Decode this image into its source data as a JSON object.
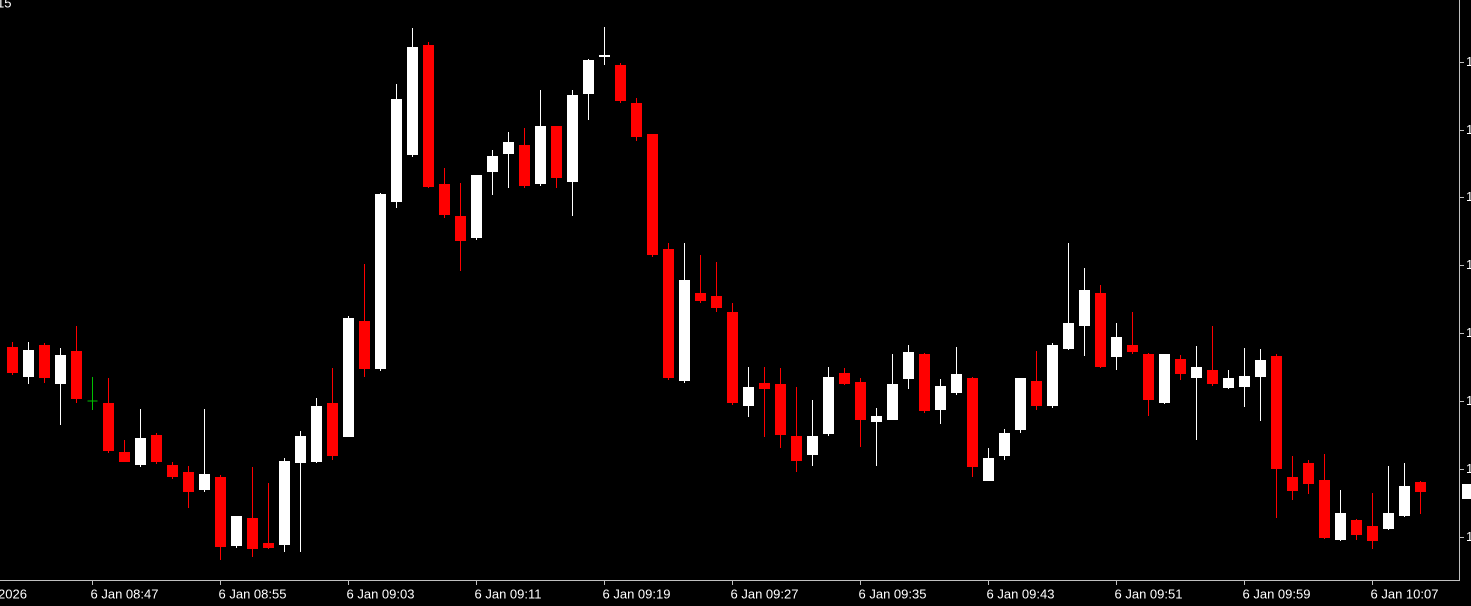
{
  "chart_data": {
    "type": "candlestick",
    "corner_label": "15",
    "left_label": "2026",
    "categories": [
      null,
      null,
      null,
      null,
      null,
      "6 Jan 08:47",
      null,
      null,
      null,
      null,
      null,
      null,
      null,
      "6 Jan 08:55",
      null,
      null,
      null,
      null,
      null,
      null,
      null,
      "6 Jan 09:03",
      null,
      null,
      null,
      null,
      null,
      null,
      null,
      "6 Jan 09:11",
      null,
      null,
      null,
      null,
      null,
      null,
      null,
      "6 Jan 09:19",
      null,
      null,
      null,
      null,
      null,
      null,
      null,
      "6 Jan 09:27",
      null,
      null,
      null,
      null,
      null,
      null,
      null,
      "6 Jan 09:35",
      null,
      null,
      null,
      null,
      null,
      null,
      null,
      "6 Jan 09:43",
      null,
      null,
      null,
      null,
      null,
      null,
      null,
      "6 Jan 09:51",
      null,
      null,
      null,
      null,
      null,
      null,
      null,
      "6 Jan 09:59",
      null,
      null,
      null,
      null,
      null,
      null,
      null,
      "6 Jan 10:07",
      null,
      null,
      null
    ],
    "open": [
      253,
      223,
      255,
      216,
      249,
      199,
      197,
      148,
      135,
      165,
      135,
      128,
      110,
      123,
      54,
      82,
      57,
      55,
      137,
      138,
      197,
      163,
      279,
      231,
      398,
      445,
      555,
      416,
      384,
      362,
      428,
      446,
      455,
      416,
      474,
      418,
      506,
      543,
      535,
      497,
      466,
      351,
      219,
      307,
      304,
      288,
      194,
      217,
      216,
      164,
      145,
      166,
      227,
      218,
      178,
      180,
      221,
      246,
      190,
      207,
      222,
      119,
      144,
      170,
      219,
      194,
      251,
      274,
      307,
      243,
      255,
      246,
      197,
      241,
      222,
      230,
      212,
      213,
      223,
      244,
      123,
      137,
      120,
      60,
      80,
      74,
      71,
      84,
      118
    ],
    "high": [
      258,
      258,
      257,
      252,
      274,
      223,
      222,
      160,
      191,
      167,
      138,
      134,
      191,
      125,
      84,
      133,
      117,
      142,
      169,
      202,
      232,
      284,
      336,
      407,
      516,
      572,
      558,
      432,
      417,
      425,
      450,
      468,
      472,
      510,
      474,
      510,
      541,
      573,
      537,
      502,
      466,
      357,
      357,
      345,
      338,
      297,
      233,
      233,
      232,
      213,
      200,
      233,
      232,
      222,
      192,
      246,
      255,
      247,
      221,
      253,
      223,
      152,
      171,
      222,
      249,
      257,
      357,
      332,
      315,
      277,
      288,
      247,
      246,
      245,
      254,
      274,
      230,
      252,
      251,
      246,
      144,
      140,
      146,
      110,
      81,
      107,
      134,
      137,
      119
    ],
    "low": [
      225,
      216,
      217,
      175,
      197,
      190,
      147,
      138,
      133,
      136,
      121,
      92,
      108,
      40,
      52,
      43,
      51,
      48,
      48,
      137,
      140,
      163,
      223,
      229,
      392,
      443,
      412,
      382,
      329,
      360,
      405,
      412,
      412,
      414,
      412,
      384,
      480,
      535,
      497,
      459,
      343,
      220,
      217,
      297,
      288,
      195,
      183,
      163,
      152,
      128,
      134,
      164,
      215,
      153,
      134,
      180,
      211,
      187,
      176,
      205,
      123,
      119,
      140,
      167,
      190,
      192,
      250,
      244,
      232,
      230,
      246,
      184,
      196,
      220,
      160,
      214,
      211,
      193,
      179,
      82,
      100,
      106,
      61,
      59,
      60,
      51,
      70,
      83,
      86
    ],
    "close": [
      227,
      250,
      222,
      245,
      201,
      199,
      149,
      138,
      162,
      138,
      123,
      108,
      126,
      53,
      84,
      51,
      52,
      139,
      164,
      194,
      144,
      282,
      231,
      406,
      501,
      553,
      413,
      385,
      359,
      425,
      444,
      458,
      414,
      474,
      422,
      505,
      540,
      545,
      499,
      463,
      345,
      222,
      320,
      299,
      292,
      197,
      213,
      211,
      165,
      139,
      164,
      223,
      216,
      180,
      184,
      216,
      248,
      189,
      214,
      226,
      133,
      142,
      167,
      222,
      194,
      255,
      277,
      310,
      233,
      263,
      248,
      200,
      246,
      226,
      233,
      216,
      222,
      224,
      240,
      131,
      109,
      116,
      62,
      87,
      65,
      59,
      87,
      114,
      108
    ],
    "up_color": "#ffffff",
    "down_color": "#ff0000",
    "doji_color": "#00c000",
    "ylim": [
      20,
      600
    ],
    "yticks": [
      {
        "value": 63,
        "label": "1"
      },
      {
        "value": 131,
        "label": "1"
      },
      {
        "value": 199,
        "label": "1"
      },
      {
        "value": 267,
        "label": "1"
      },
      {
        "value": 335,
        "label": "1"
      },
      {
        "value": 403,
        "label": "1"
      },
      {
        "value": 470,
        "label": "1"
      },
      {
        "value": 538,
        "label": "1"
      }
    ],
    "grid": false
  }
}
